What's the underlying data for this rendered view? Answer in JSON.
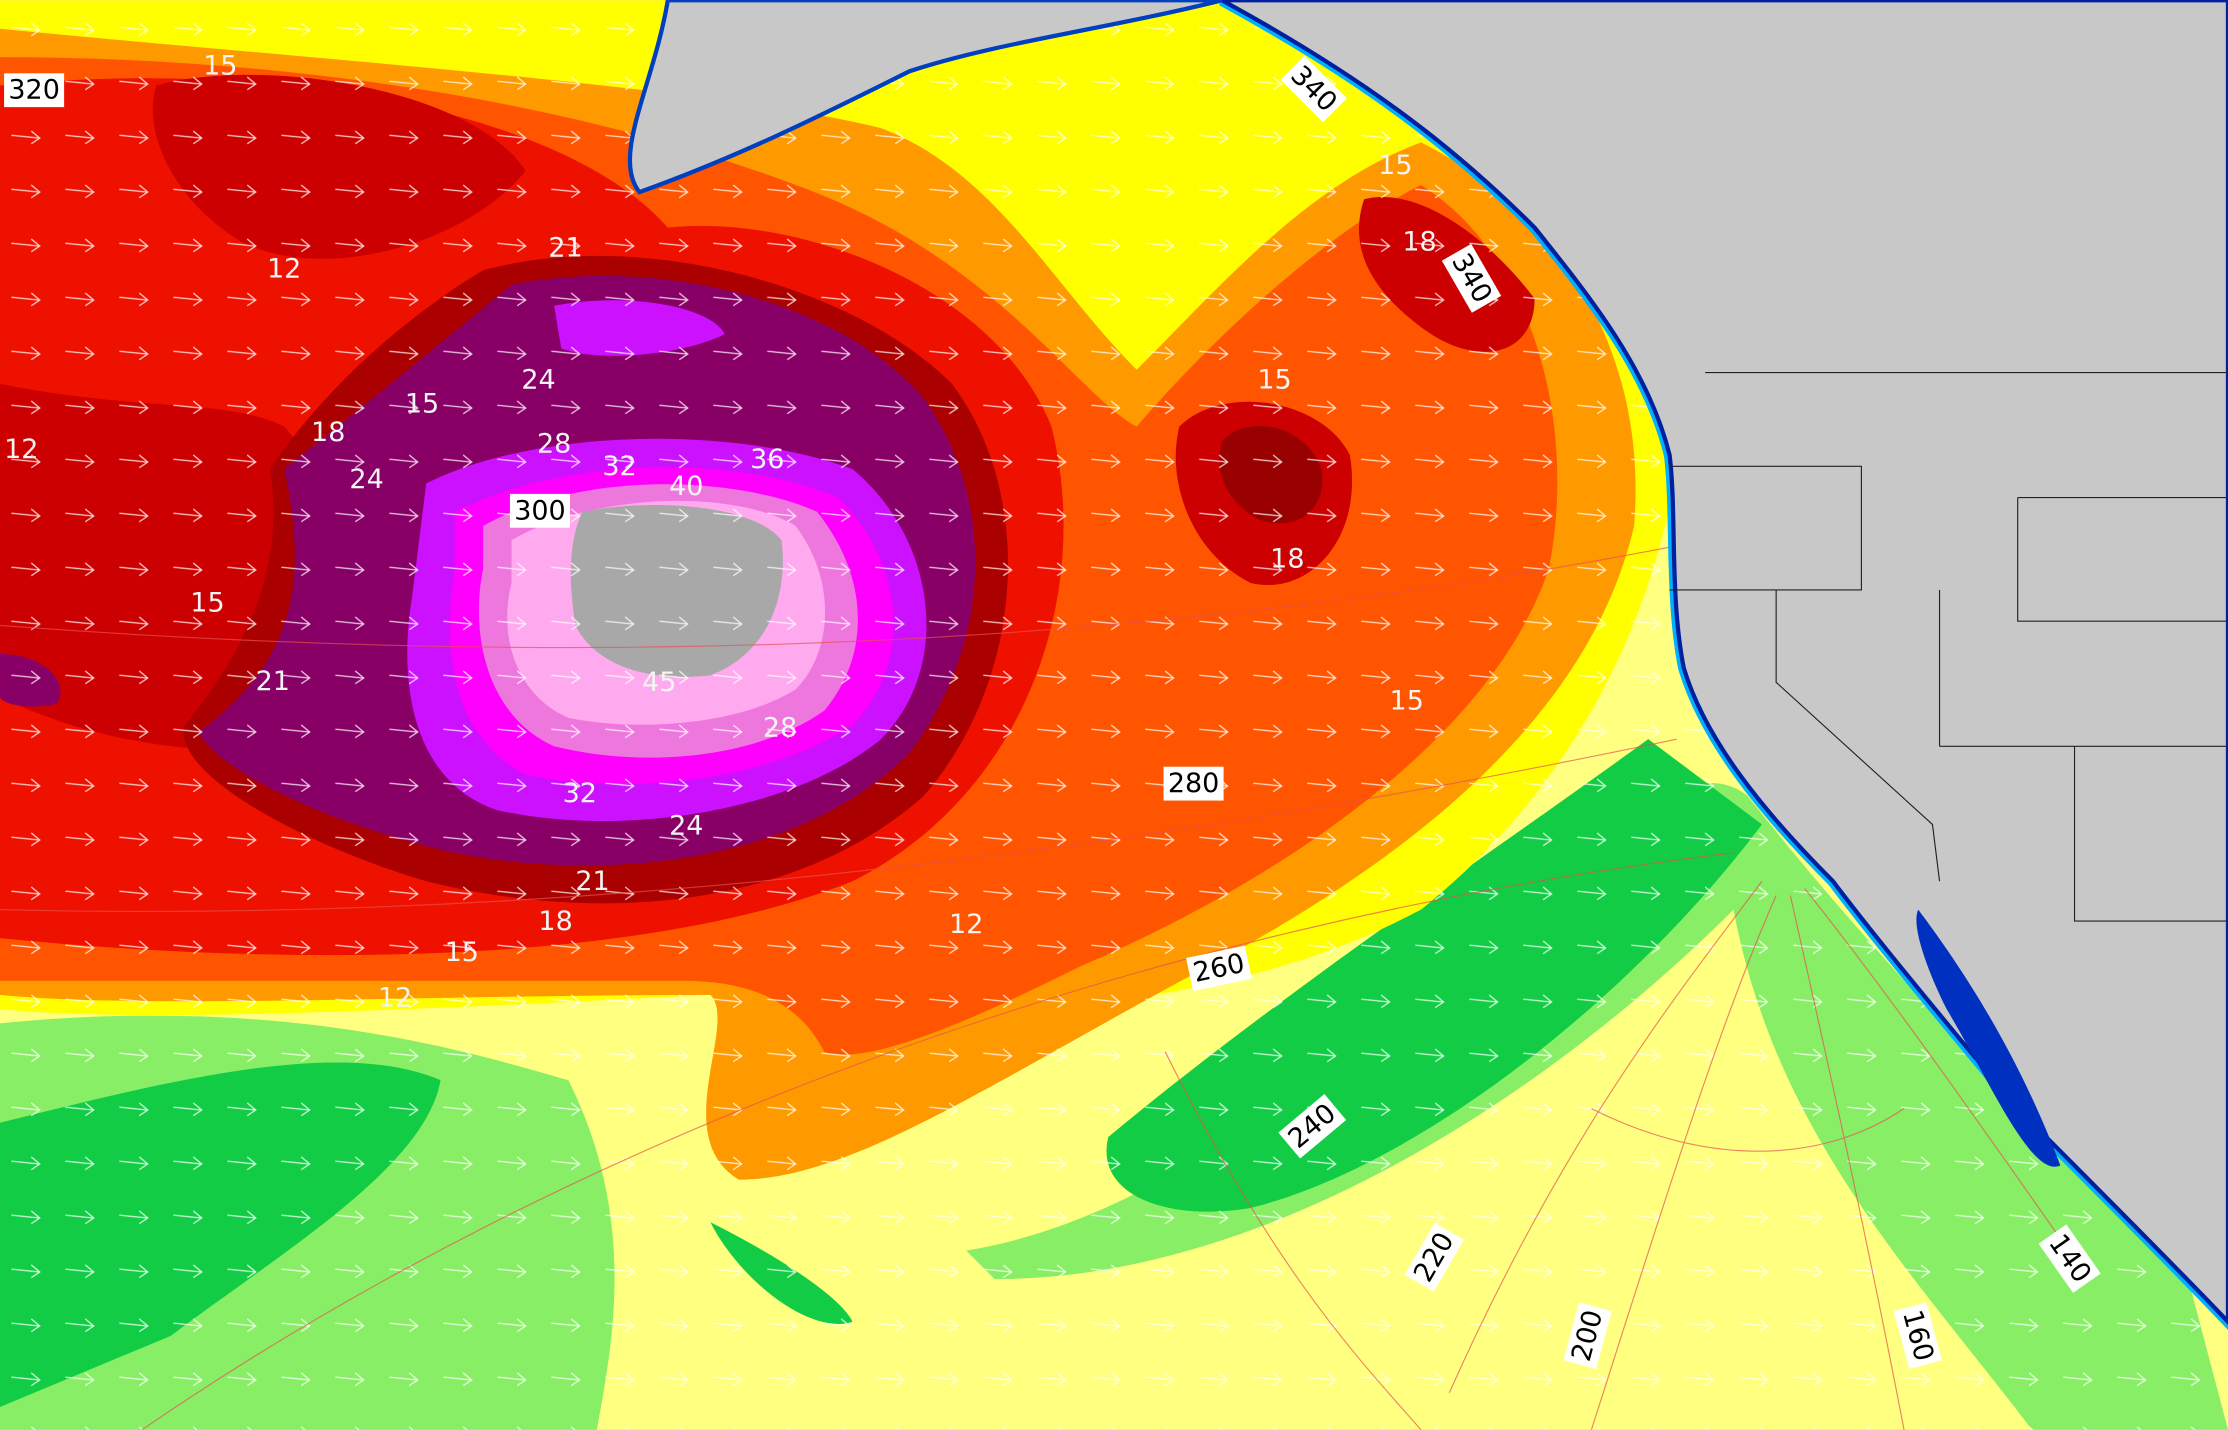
{
  "contour_labels": [
    15,
    12,
    15,
    18,
    24,
    21,
    12,
    24,
    28,
    32,
    36,
    40,
    15,
    21,
    45,
    28,
    32,
    24,
    21,
    18,
    15,
    12,
    12,
    15,
    18,
    15,
    15,
    18
  ],
  "great_circle_labels": [
    320,
    300,
    280,
    260,
    240,
    220,
    200,
    160,
    140,
    340,
    340
  ]
}
